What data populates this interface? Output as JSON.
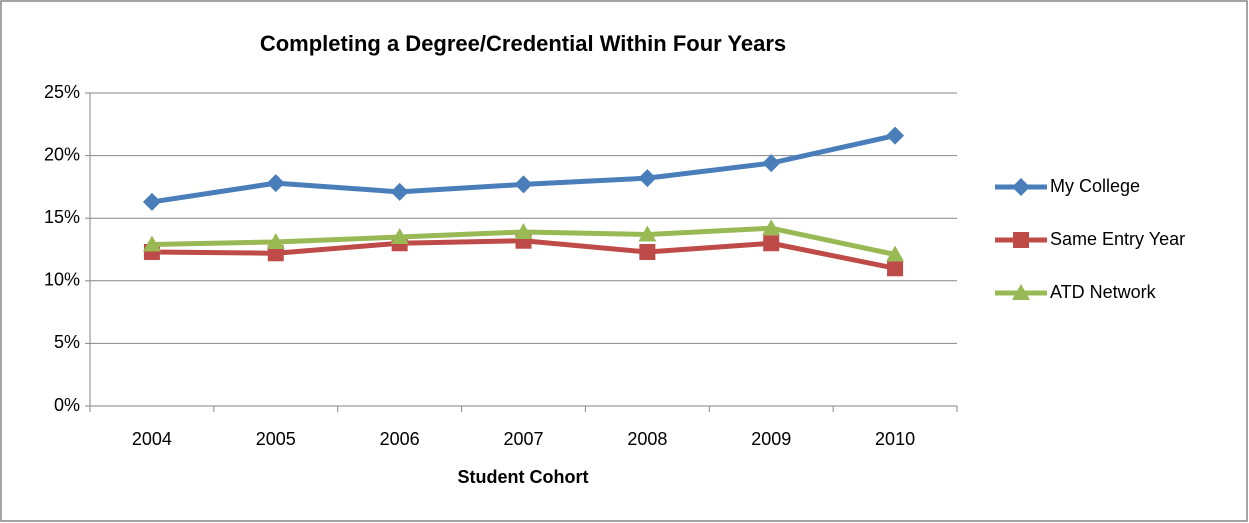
{
  "chart_data": {
    "type": "line",
    "title": "Completing a Degree/Credential Within Four Years",
    "x_label": "Student Cohort",
    "categories": [
      "2004",
      "2005",
      "2006",
      "2007",
      "2008",
      "2009",
      "2010"
    ],
    "series": [
      {
        "name": "My College",
        "color": "#4a7ebb",
        "marker": "diamond",
        "values": [
          16.3,
          17.8,
          17.1,
          17.7,
          18.2,
          19.4,
          21.6
        ]
      },
      {
        "name": "Same Entry Year",
        "color": "#be4b48",
        "marker": "square",
        "values": [
          12.3,
          12.2,
          13.0,
          13.2,
          12.3,
          13.0,
          11.0
        ]
      },
      {
        "name": "ATD Network",
        "color": "#98b954",
        "marker": "triangle",
        "values": [
          12.9,
          13.1,
          13.5,
          13.9,
          13.7,
          14.2,
          12.1
        ]
      }
    ],
    "ylim": [
      0,
      25
    ],
    "yticks": [
      {
        "value": 0,
        "label": "0%"
      },
      {
        "value": 5,
        "label": "5%"
      },
      {
        "value": 10,
        "label": "10%"
      },
      {
        "value": 15,
        "label": "15%"
      },
      {
        "value": 20,
        "label": "20%"
      },
      {
        "value": 25,
        "label": "25%"
      }
    ],
    "grid": true,
    "legend": "right"
  }
}
